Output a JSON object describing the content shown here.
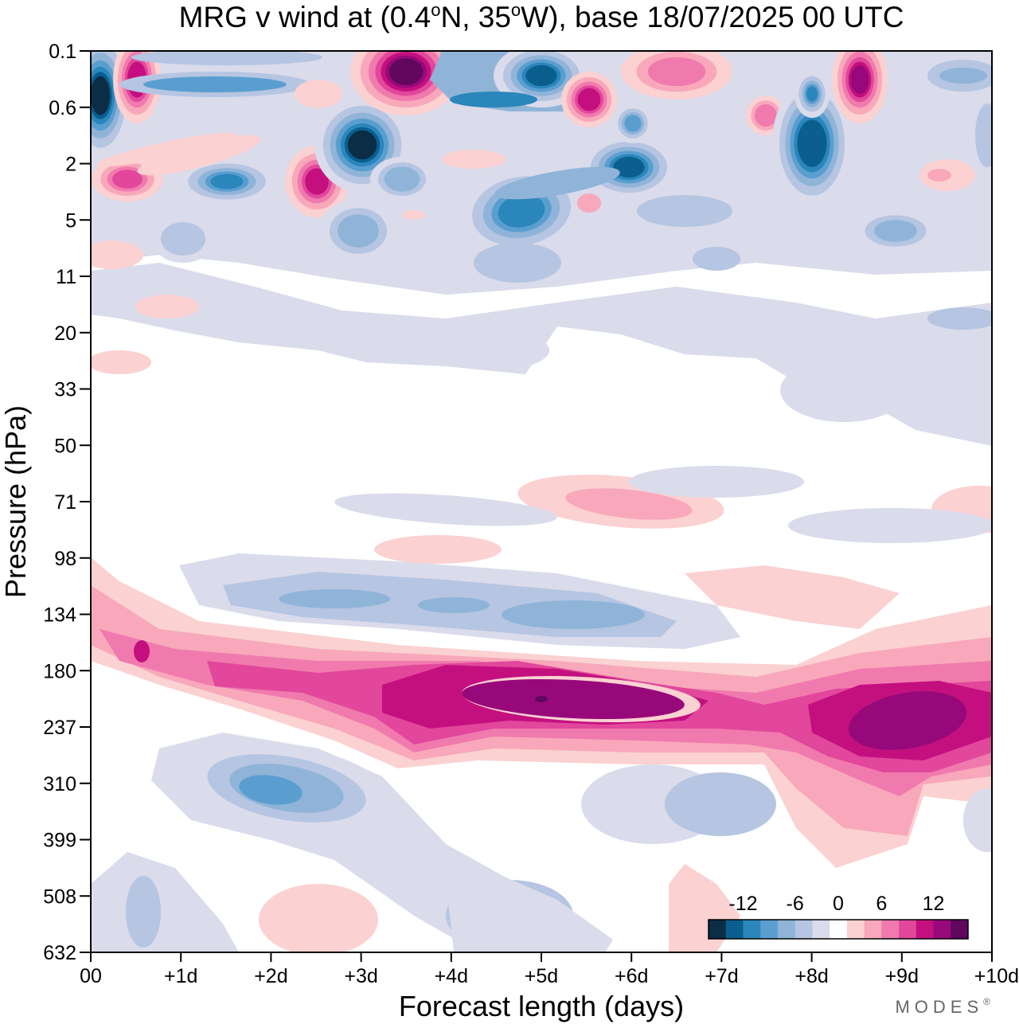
{
  "title_parts": {
    "pre": "MRG v wind at (0.4",
    "deg1": "o",
    "mid": "N, 35",
    "deg2": "o",
    "post": "W),  base 18/07/2025  00 UTC"
  },
  "brand": "MODES",
  "brand_mark": "®",
  "chart_data": {
    "type": "heatmap",
    "title": "MRG v wind at (0.4°N, 35°W),  base 18/07/2025  00 UTC",
    "xlabel": "Forecast length (days)",
    "ylabel": "Pressure (hPa)",
    "x_ticks": [
      "00",
      "+1d",
      "+2d",
      "+3d",
      "+4d",
      "+5d",
      "+6d",
      "+7d",
      "+8d",
      "+9d",
      "+10d"
    ],
    "x_range": [
      0,
      10
    ],
    "y_ticks": [
      "0.1",
      "0.6",
      "2",
      "5",
      "11",
      "20",
      "33",
      "50",
      "71",
      "98",
      "134",
      "180",
      "237",
      "310",
      "399",
      "508",
      "632"
    ],
    "y_scale": "log (top 0.1 hPa, bottom 632 hPa)",
    "colorbar": {
      "ticks": [
        "-12",
        "-6",
        "0",
        "6",
        "12"
      ],
      "levels": [
        -14,
        -12,
        -10,
        -8,
        -6,
        -4,
        -2,
        2,
        4,
        6,
        8,
        10,
        12,
        14
      ],
      "colors": [
        "#0b2d45",
        "#0a5f8e",
        "#2a86bb",
        "#5a9ed0",
        "#8fb4d8",
        "#b5c5e2",
        "#dadbeb",
        "#ffffff",
        "#fbd1d2",
        "#f8a8ba",
        "#f07aad",
        "#e2479c",
        "#c4107f",
        "#97097a",
        "#61075e"
      ],
      "placement": "bottom-right"
    },
    "features": [
      {
        "name": "positive jet band",
        "x_range": [
          0,
          10
        ],
        "pressure_hPa": [
          134,
          310
        ],
        "peak": 12
      },
      {
        "name": "negative band",
        "x_range": [
          1.2,
          7.2
        ],
        "pressure_hPa": [
          98,
          180
        ],
        "peak": -8
      },
      {
        "name": "negative lobe",
        "x_range": [
          0.8,
          3.5
        ],
        "pressure_hPa": [
          260,
          420
        ],
        "peak": -10
      },
      {
        "name": "stratospheric mixed signals",
        "x_range": [
          0,
          10
        ],
        "pressure_hPa": [
          0.1,
          11
        ],
        "peak_abs": 14
      }
    ]
  }
}
